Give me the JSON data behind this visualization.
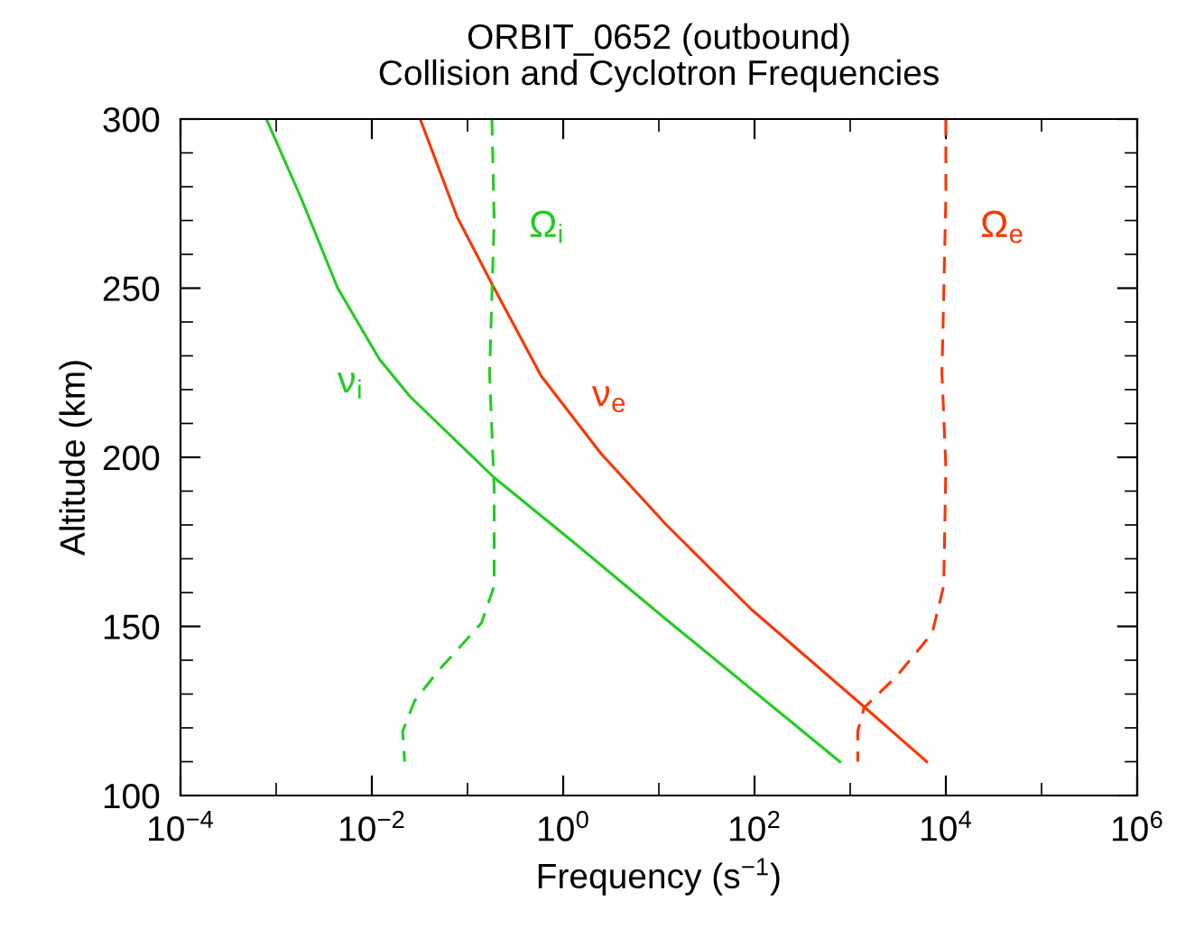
{
  "chart_data": {
    "type": "line",
    "title": "ORBIT_0652 (outbound)",
    "subtitle": "Collision and Cyclotron Frequencies",
    "xlabel": "Frequency (s$^{−1}$)",
    "ylabel": "Altitude (km)",
    "log": "x",
    "grid": false,
    "legend": false,
    "xlim": [
      0.0001,
      1000000
    ],
    "ylim": [
      100,
      300
    ],
    "xticks": [
      {
        "value": 0.0001,
        "label": "10$^{−4}$"
      },
      {
        "value": 0.001,
        "label": null
      },
      {
        "value": 0.01,
        "label": "10$^{−2}$"
      },
      {
        "value": 0.1,
        "label": null
      },
      {
        "value": 1,
        "label": "10$^{0}$"
      },
      {
        "value": 10,
        "label": null
      },
      {
        "value": 100,
        "label": "10$^{2}$"
      },
      {
        "value": 1000,
        "label": null
      },
      {
        "value": 10000,
        "label": "10$^{4}$"
      },
      {
        "value": 100000,
        "label": null
      },
      {
        "value": 1000000,
        "label": "10$^{6}$"
      }
    ],
    "yticks": [
      100,
      {
        "value": 110,
        "label": null
      },
      {
        "value": 120,
        "label": null
      },
      {
        "value": 130,
        "label": null
      },
      {
        "value": 140,
        "label": null
      },
      150,
      {
        "value": 160,
        "label": null
      },
      {
        "value": 170,
        "label": null
      },
      {
        "value": 180,
        "label": null
      },
      {
        "value": 190,
        "label": null
      },
      200,
      {
        "value": 210,
        "label": null
      },
      {
        "value": 220,
        "label": null
      },
      {
        "value": 230,
        "label": null
      },
      {
        "value": 240,
        "label": null
      },
      250,
      {
        "value": 260,
        "label": null
      },
      {
        "value": 270,
        "label": null
      },
      {
        "value": 280,
        "label": null
      },
      {
        "value": 290,
        "label": null
      },
      300
    ],
    "series": [
      {
        "name": "ν$_{i}$",
        "color": "#22cc22",
        "line_style": "solid",
        "x": [
          0.00079,
          0.0018,
          0.0044,
          0.012,
          0.025,
          0.19,
          1.4,
          12,
          780
        ],
        "values": [
          300,
          277,
          250,
          229,
          218,
          194,
          174,
          152,
          110
        ]
      },
      {
        "name": "ν$_{e}$",
        "color": "#ff3300",
        "line_style": "solid",
        "x": [
          0.032,
          0.078,
          0.19,
          0.59,
          2.5,
          12,
          93,
          1300,
          6300
        ],
        "values": [
          300,
          271,
          250,
          224,
          201,
          180,
          155,
          127,
          110
        ]
      },
      {
        "name": "Ω$_{i}$",
        "color": "#22cc22",
        "line_style": "dashed",
        "x": [
          0.18,
          0.19,
          0.17,
          0.19,
          0.19,
          0.14,
          0.05,
          0.028,
          0.021,
          0.022
        ],
        "values": [
          300,
          270,
          225,
          191,
          162,
          151,
          137,
          128,
          119,
          110
        ]
      },
      {
        "name": "Ω$_{e}$",
        "color": "#ff3300",
        "line_style": "dashed",
        "x": [
          10000,
          10000,
          9500,
          9100,
          10000,
          9500,
          7200,
          3000,
          1400,
          1200,
          1200
        ],
        "values": [
          300,
          277,
          248,
          225,
          197,
          162,
          148,
          135,
          126,
          119,
          110
        ]
      }
    ]
  }
}
